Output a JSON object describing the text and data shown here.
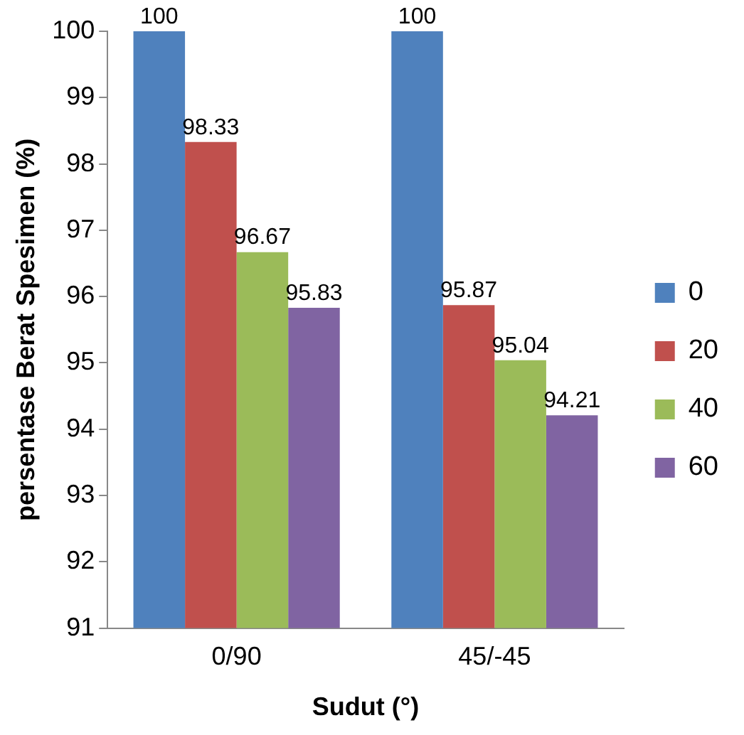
{
  "chart_data": {
    "type": "bar",
    "xlabel": "Sudut (°)",
    "ylabel": "persentase Berat Spesimen (%)",
    "categories": [
      "0/90",
      "45/-45"
    ],
    "series": [
      {
        "name": "0",
        "color": "#4f81bd",
        "values": [
          100,
          100
        ]
      },
      {
        "name": "20",
        "color": "#c0504d",
        "values": [
          98.33,
          95.87
        ]
      },
      {
        "name": "40",
        "color": "#9bbb59",
        "values": [
          96.67,
          95.04
        ]
      },
      {
        "name": "60",
        "color": "#8064a2",
        "values": [
          95.83,
          94.21
        ]
      }
    ],
    "ylim": [
      91,
      100
    ],
    "yticks": [
      91,
      92,
      93,
      94,
      95,
      96,
      97,
      98,
      99,
      100
    ],
    "grid": false,
    "legend": "right",
    "data_labels": true
  }
}
